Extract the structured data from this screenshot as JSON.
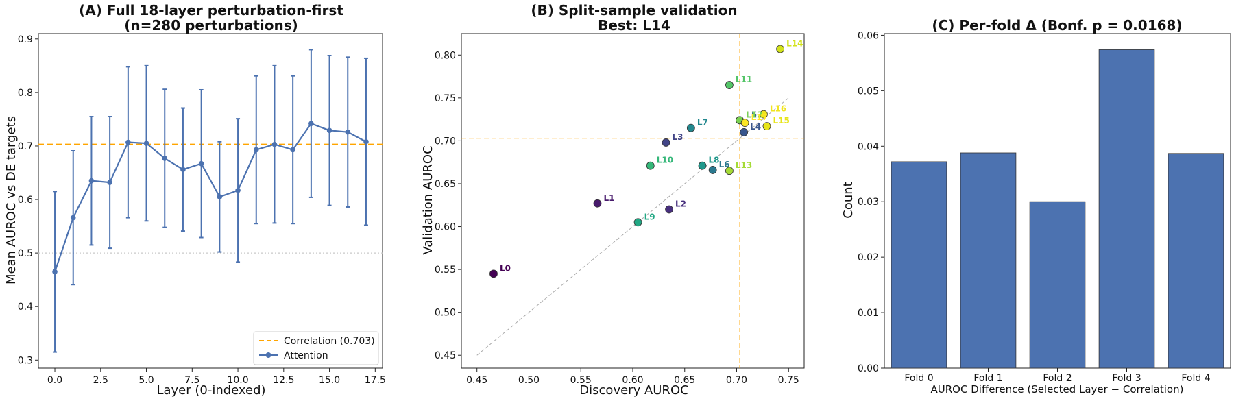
{
  "chart_data": [
    {
      "type": "line",
      "title": "(A) Full 18-layer perturbation-first\n(n=280 perturbations)",
      "xlabel": "Layer (0-indexed)",
      "ylabel": "Mean AUROC vs DE targets",
      "xlim": [
        -0.9,
        17.9
      ],
      "ylim": [
        0.285,
        0.91
      ],
      "xticks": [
        0.0,
        2.5,
        5.0,
        7.5,
        10.0,
        12.5,
        15.0,
        17.5
      ],
      "xtick_labels": [
        "0.0",
        "2.5",
        "5.0",
        "7.5",
        "10.0",
        "12.5",
        "15.0",
        "17.5"
      ],
      "yticks": [
        0.3,
        0.4,
        0.5,
        0.6,
        0.7,
        0.8,
        0.9
      ],
      "ytick_labels": [
        "0.3",
        "0.4",
        "0.5",
        "0.6",
        "0.7",
        "0.8",
        "0.9"
      ],
      "grid": false,
      "legend_position": "lower-right",
      "series": [
        {
          "name": "Attention",
          "color": "#4c72b0",
          "x": [
            0,
            1,
            2,
            3,
            4,
            5,
            6,
            7,
            8,
            9,
            10,
            11,
            12,
            13,
            14,
            15,
            16,
            17
          ],
          "y": [
            0.465,
            0.566,
            0.635,
            0.632,
            0.707,
            0.705,
            0.677,
            0.656,
            0.667,
            0.605,
            0.617,
            0.693,
            0.703,
            0.693,
            0.742,
            0.729,
            0.726,
            0.708
          ],
          "err": [
            0.15,
            0.125,
            0.12,
            0.123,
            0.141,
            0.145,
            0.129,
            0.115,
            0.138,
            0.103,
            0.134,
            0.138,
            0.147,
            0.138,
            0.138,
            0.14,
            0.14,
            0.156
          ]
        }
      ],
      "reference_lines": [
        {
          "name": "Correlation (0.703)",
          "orientation": "horizontal",
          "value": 0.703,
          "color": "#ffa500",
          "style": "dashed"
        },
        {
          "orientation": "horizontal",
          "value": 0.5,
          "color": "#c8c8c8",
          "style": "dotted"
        }
      ]
    },
    {
      "type": "scatter",
      "title": "(B) Split-sample validation\nBest: L14",
      "xlabel": "Discovery AUROC",
      "ylabel": "Validation AUROC",
      "xlim": [
        0.435,
        0.765
      ],
      "ylim": [
        0.435,
        0.825
      ],
      "xticks": [
        0.45,
        0.5,
        0.55,
        0.6,
        0.65,
        0.7,
        0.75
      ],
      "xtick_labels": [
        "0.45",
        "0.50",
        "0.55",
        "0.60",
        "0.65",
        "0.70",
        "0.75"
      ],
      "yticks": [
        0.45,
        0.5,
        0.55,
        0.6,
        0.65,
        0.7,
        0.75,
        0.8
      ],
      "ytick_labels": [
        "0.45",
        "0.50",
        "0.55",
        "0.60",
        "0.65",
        "0.70",
        "0.75",
        "0.80"
      ],
      "grid": false,
      "points": [
        {
          "label": "L0",
          "x": 0.466,
          "y": 0.545,
          "color": "#440154"
        },
        {
          "label": "L1",
          "x": 0.566,
          "y": 0.627,
          "color": "#481a6c"
        },
        {
          "label": "L2",
          "x": 0.635,
          "y": 0.62,
          "color": "#472f7d"
        },
        {
          "label": "L3",
          "x": 0.632,
          "y": 0.698,
          "color": "#414487"
        },
        {
          "label": "L4",
          "x": 0.707,
          "y": 0.71,
          "color": "#39568c"
        },
        {
          "label": "L5",
          "x": 0.703,
          "y": 0.724,
          "color": "#31688e"
        },
        {
          "label": "L6",
          "x": 0.677,
          "y": 0.666,
          "color": "#2a788e"
        },
        {
          "label": "L7",
          "x": 0.656,
          "y": 0.715,
          "color": "#23888e"
        },
        {
          "label": "L8",
          "x": 0.667,
          "y": 0.671,
          "color": "#1f988b"
        },
        {
          "label": "L9",
          "x": 0.605,
          "y": 0.605,
          "color": "#22a884"
        },
        {
          "label": "L10",
          "x": 0.617,
          "y": 0.671,
          "color": "#35b779"
        },
        {
          "label": "L11",
          "x": 0.693,
          "y": 0.765,
          "color": "#54c568"
        },
        {
          "label": "L12",
          "x": 0.703,
          "y": 0.724,
          "color": "#7ad151"
        },
        {
          "label": "L13",
          "x": 0.693,
          "y": 0.665,
          "color": "#a5db36"
        },
        {
          "label": "L14",
          "x": 0.742,
          "y": 0.807,
          "color": "#d2e21b"
        },
        {
          "label": "L15",
          "x": 0.729,
          "y": 0.717,
          "color": "#e7e419"
        },
        {
          "label": "L16",
          "x": 0.726,
          "y": 0.731,
          "color": "#f1e51d"
        },
        {
          "label": "L17",
          "x": 0.708,
          "y": 0.721,
          "color": "#fde725"
        }
      ],
      "reference_lines": [
        {
          "orientation": "vertical",
          "value": 0.703,
          "color": "#ffa500",
          "style": "dashed"
        },
        {
          "orientation": "horizontal",
          "value": 0.703,
          "color": "#ffa500",
          "style": "dashed"
        },
        {
          "orientation": "diagonal",
          "from": [
            0.45,
            0.45
          ],
          "to": [
            0.75,
            0.75
          ],
          "color": "#aaaaaa",
          "style": "dashed"
        }
      ]
    },
    {
      "type": "bar",
      "title": "(C) Per-fold Δ (Bonf. p = 0.0168)",
      "xlabel": "AUROC Difference (Selected Layer − Correlation)",
      "ylabel": "Count",
      "categories": [
        "Fold 0",
        "Fold 1",
        "Fold 2",
        "Fold 3",
        "Fold 4"
      ],
      "values": [
        0.0372,
        0.0388,
        0.03,
        0.0574,
        0.0387
      ],
      "ylim": [
        0,
        0.0603
      ],
      "yticks": [
        0.0,
        0.01,
        0.02,
        0.03,
        0.04,
        0.05,
        0.06
      ],
      "ytick_labels": [
        "0.00",
        "0.01",
        "0.02",
        "0.03",
        "0.04",
        "0.05",
        "0.06"
      ],
      "color": "#4c72b0",
      "grid": false
    }
  ]
}
